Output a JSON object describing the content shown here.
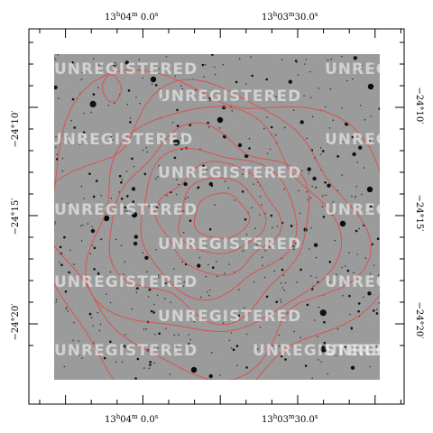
{
  "image": {
    "description_free": true,
    "colors": {
      "background": "#a9a9a9",
      "contour": "#d9534f",
      "frame": "#000000",
      "star": "#0a0a0a"
    }
  },
  "ra_labels": {
    "left": {
      "h": "13",
      "m": "04",
      "s": "0.0",
      "hu": "h",
      "mu": "m",
      "su": "s"
    },
    "right": {
      "h": "13",
      "m": "03",
      "s": "30.0",
      "hu": "h",
      "mu": "m",
      "su": "s"
    }
  },
  "dec_labels": [
    "−24°10′",
    "−24°15′",
    "−24°20′"
  ],
  "watermark_text": "UNREGISTERED"
}
